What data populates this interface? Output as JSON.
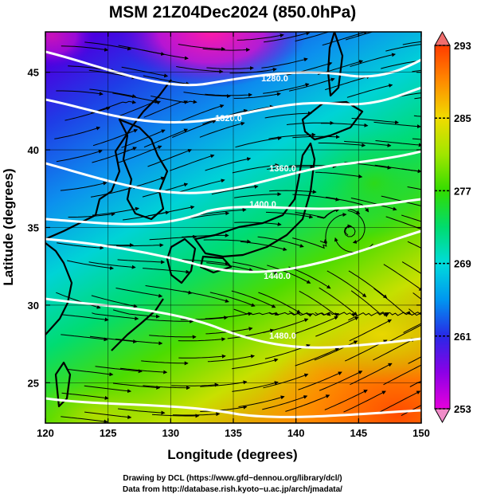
{
  "title": "MSM 21Z04Dec2024 (850.0hPa)",
  "axes": {
    "xlabel": "Longitude (degrees)",
    "ylabel": "Latitude  (degrees)",
    "xlim": [
      120,
      150
    ],
    "ylim": [
      22.4,
      47.6
    ],
    "xticks": [
      120,
      125,
      130,
      135,
      140,
      145,
      150
    ],
    "yticks": [
      25,
      30,
      35,
      40,
      45
    ],
    "x_tick_labels": [
      "120",
      "125",
      "130",
      "135",
      "140",
      "145",
      "150"
    ],
    "y_tick_labels": [
      "25",
      "30",
      "35",
      "40",
      "45"
    ],
    "grid": true
  },
  "colorbar": {
    "min": 253,
    "max": 293,
    "tick_values": [
      253,
      261,
      269,
      277,
      285,
      293
    ],
    "tick_labels": [
      "253",
      "261",
      "269",
      "277",
      "285",
      "293"
    ],
    "colors": [
      "#e600dc",
      "#8c00e6",
      "#2828e6",
      "#0096f0",
      "#00dcdc",
      "#00dc6e",
      "#32dc00",
      "#a0e600",
      "#f0dc00",
      "#ff8c00",
      "#ff3c00"
    ],
    "end_arrows": [
      "#f06e6e",
      "#f08cc8"
    ]
  },
  "credits": {
    "line1": "Drawing by DCL (https://www.gfd−dennou.org/library/dcl/)",
    "line2": "Data from http://database.rish.kyoto−u.ac.jp/arch/jmadata/"
  },
  "contour_labels": [
    "1280.0",
    "1320.0",
    "1360.0",
    "1400.0",
    "1440.0",
    "1480.0"
  ],
  "theme": {
    "contour_color": "#ffffff",
    "coast_color": "#000000",
    "streamline_color": "#000000"
  }
}
